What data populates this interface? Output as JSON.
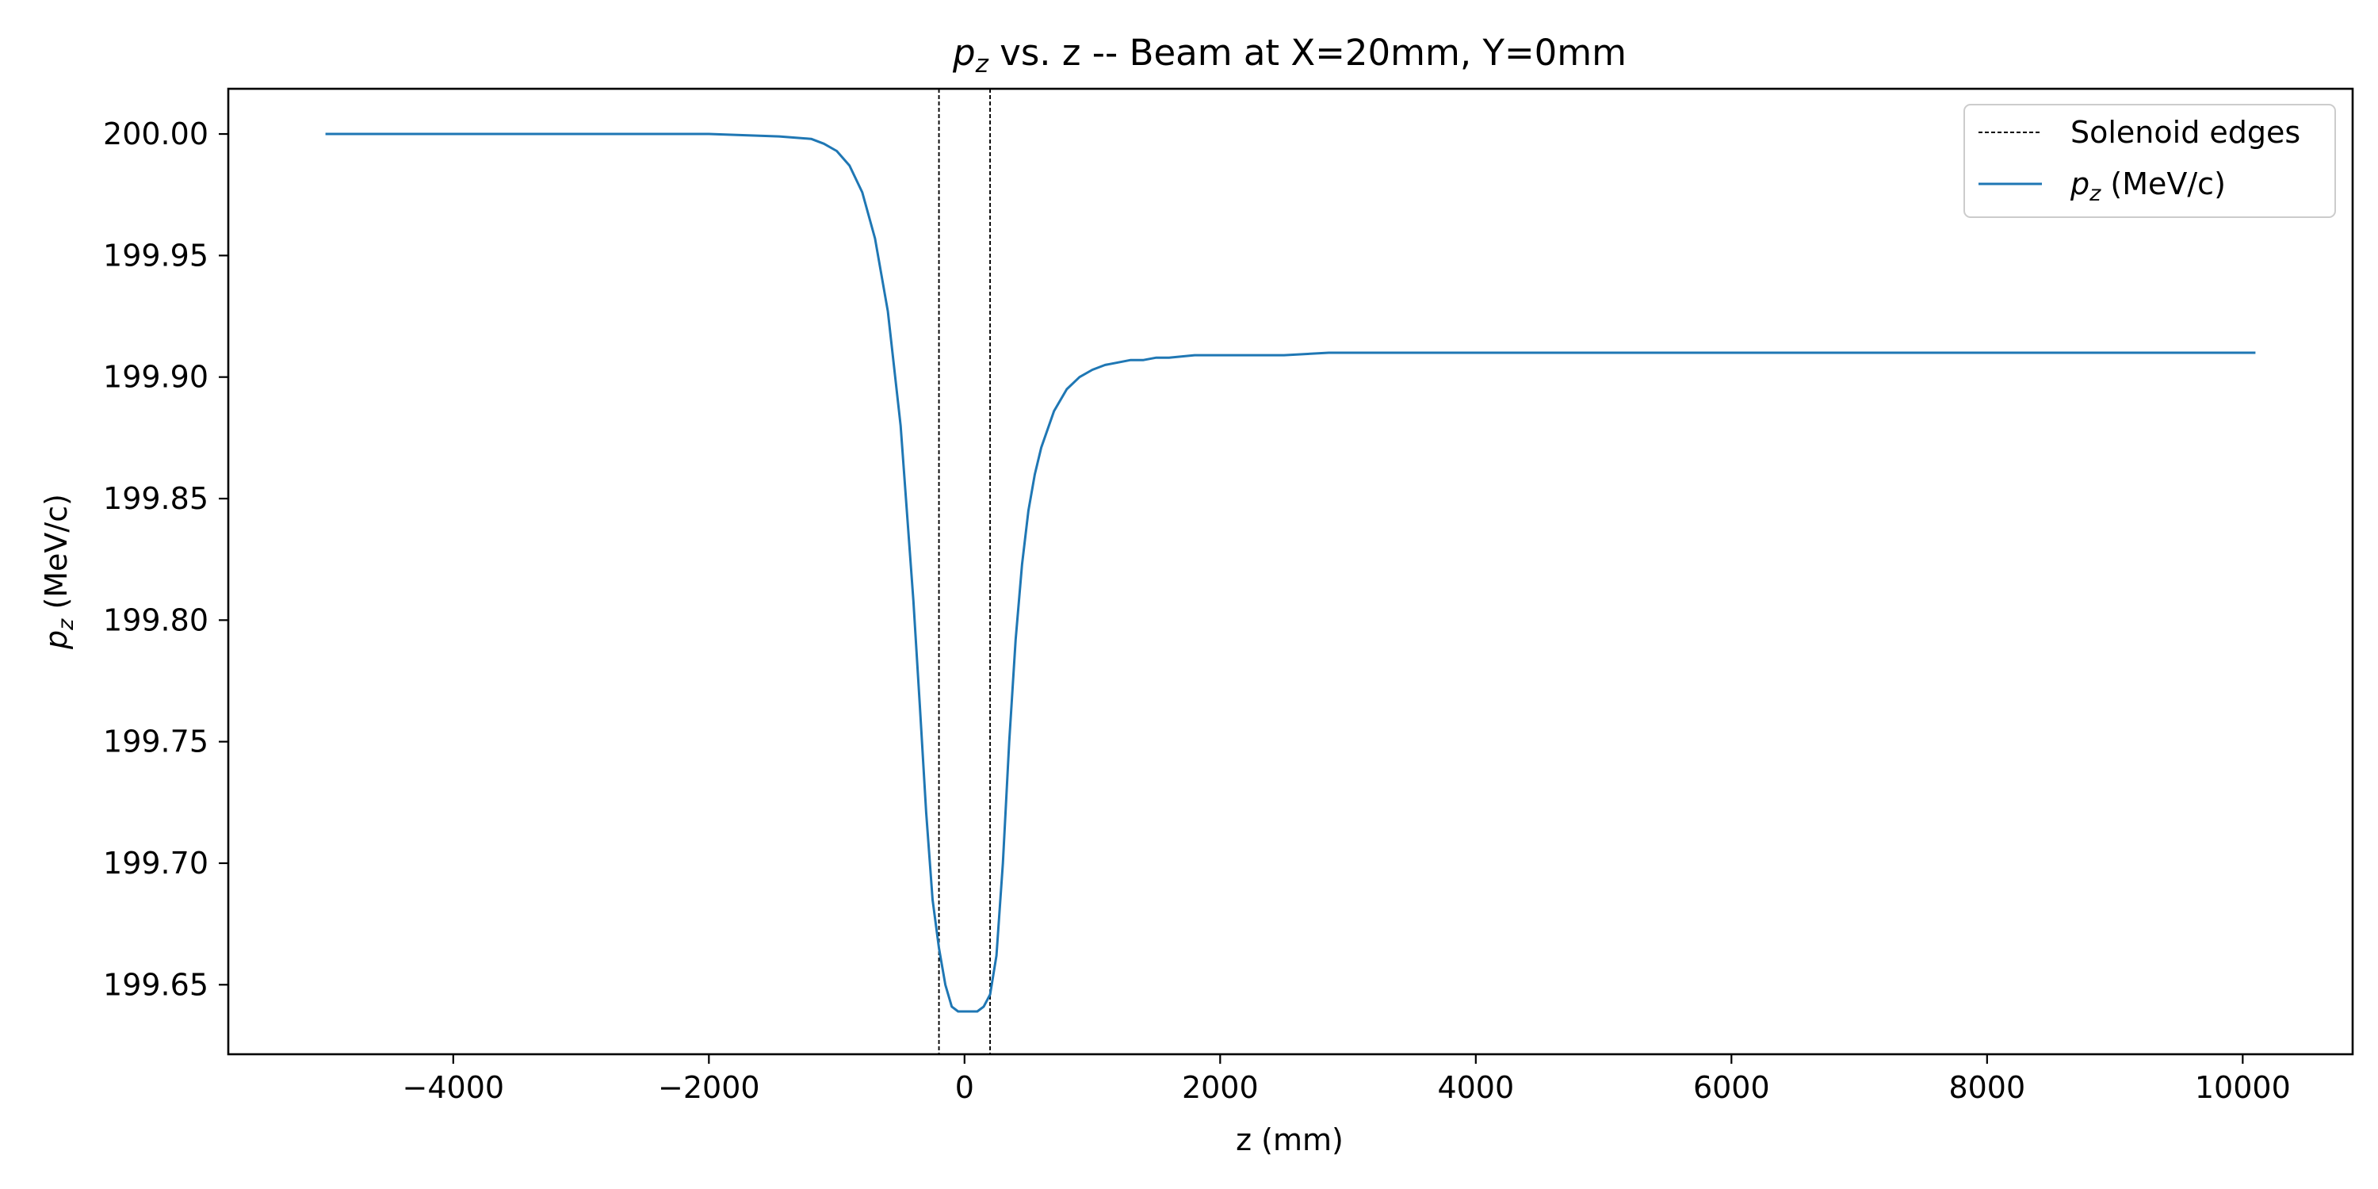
{
  "chart_data": {
    "type": "line",
    "title_main": "p",
    "title_sub": "z",
    "title_rest": " vs. z -- Beam at X=20mm, Y=0mm",
    "xlabel": "z (mm)",
    "ylabel_main": "p",
    "ylabel_sub": "z",
    "ylabel_rest": " (MeV/c)",
    "xlim": [
      -5760,
      10860
    ],
    "ylim": [
      199.6214,
      200.0186
    ],
    "x_ticks": [
      -4000,
      -2000,
      0,
      2000,
      4000,
      6000,
      8000,
      10000
    ],
    "x_tick_labels": [
      "−4000",
      "−2000",
      "0",
      "2000",
      "4000",
      "6000",
      "8000",
      "10000"
    ],
    "y_ticks": [
      200.0,
      199.95,
      199.9,
      199.85,
      199.8,
      199.75,
      199.7,
      199.65
    ],
    "y_tick_labels": [
      "200.00",
      "199.95",
      "199.90",
      "199.85",
      "199.80",
      "199.75",
      "199.70",
      "199.65"
    ],
    "grid": false,
    "legend_position": "top-right",
    "vlines": {
      "x": [
        -200,
        200
      ],
      "legend_label": "Solenoid edges",
      "color": "#000000",
      "style": "dashed"
    },
    "series": [
      {
        "name_main": "p",
        "name_sub": "z",
        "name_rest": " (MeV/c)",
        "color": "#1f77b4",
        "x": [
          -5000,
          -2000,
          -1450,
          -1200,
          -1100,
          -1000,
          -900,
          -800,
          -700,
          -600,
          -500,
          -400,
          -350,
          -300,
          -250,
          -200,
          -150,
          -100,
          -50,
          0,
          50,
          100,
          150,
          200,
          250,
          300,
          350,
          400,
          450,
          500,
          550,
          600,
          700,
          800,
          900,
          1000,
          1100,
          1200,
          1300,
          1400,
          1500,
          1600,
          1800,
          2000,
          2500,
          2850,
          4000,
          6000,
          8000,
          10100
        ],
        "y": [
          200.0,
          200.0,
          199.999,
          199.998,
          199.996,
          199.993,
          199.987,
          199.976,
          199.957,
          199.927,
          199.88,
          199.808,
          199.765,
          199.721,
          199.685,
          199.665,
          199.65,
          199.641,
          199.639,
          199.639,
          199.639,
          199.639,
          199.641,
          199.646,
          199.662,
          199.7,
          199.75,
          199.792,
          199.823,
          199.845,
          199.86,
          199.871,
          199.886,
          199.895,
          199.9,
          199.903,
          199.905,
          199.906,
          199.907,
          199.907,
          199.908,
          199.908,
          199.909,
          199.909,
          199.909,
          199.91,
          199.91,
          199.91,
          199.91,
          199.91
        ]
      }
    ]
  }
}
